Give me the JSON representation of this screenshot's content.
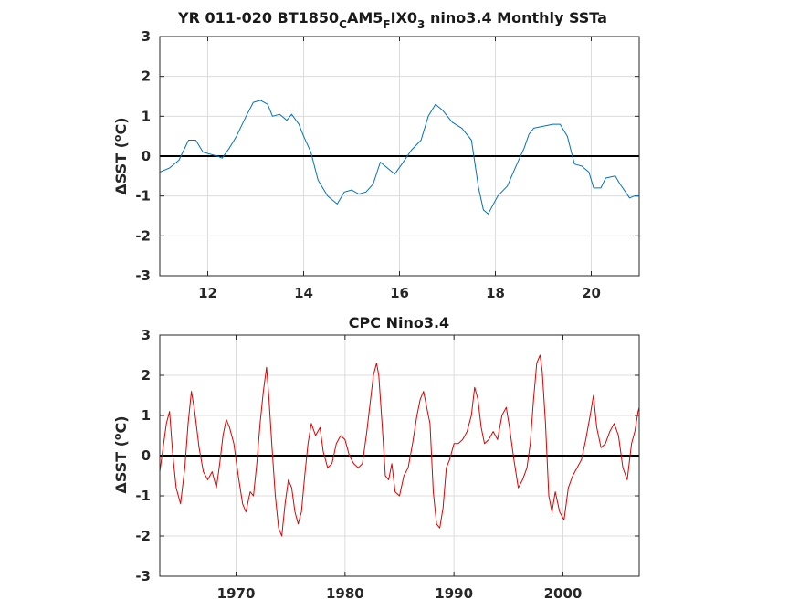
{
  "chart_data": [
    {
      "type": "line",
      "title": "YR 011-020 BT1850",
      "title_sub1": "C",
      "title_mid": "AM5",
      "title_sub2": "F",
      "title_mid2": "IX0",
      "title_sub3": "3",
      "title_end": " nino3.4 Monthly SSTa",
      "ylabel_delta": "Δ",
      "ylabel": "SST (",
      "ylabel_deg": "o",
      "ylabel_end": "C)",
      "xlim": [
        11,
        21
      ],
      "ylim": [
        -3,
        3
      ],
      "xticks": [
        "12",
        "14",
        "16",
        "18",
        "20"
      ],
      "xtick_values": [
        12,
        14,
        16,
        18,
        20
      ],
      "yticks": [
        "3",
        "2",
        "1",
        "0",
        "-1",
        "-2",
        "-3"
      ],
      "ytick_values": [
        3,
        2,
        1,
        0,
        -1,
        -2,
        -3
      ],
      "grid": true,
      "zero_line": true,
      "series": [
        {
          "color": "#0072bd",
          "x": [
            11.0,
            11.2,
            11.4,
            11.6,
            11.75,
            11.9,
            12.05,
            12.2,
            12.3,
            12.45,
            12.6,
            12.8,
            12.95,
            13.1,
            13.25,
            13.35,
            13.5,
            13.65,
            13.75,
            13.9,
            14.0,
            14.15,
            14.3,
            14.5,
            14.7,
            14.85,
            15.0,
            15.15,
            15.3,
            15.45,
            15.6,
            15.75,
            15.9,
            16.05,
            16.25,
            16.45,
            16.6,
            16.75,
            16.9,
            17.1,
            17.3,
            17.5,
            17.65,
            17.75,
            17.85,
            18.05,
            18.25,
            18.45,
            18.6,
            18.7,
            18.8,
            19.0,
            19.2,
            19.35,
            19.5,
            19.65,
            19.8,
            19.95,
            20.05,
            20.2,
            20.3,
            20.5,
            20.6,
            20.8,
            20.9,
            21.0
          ],
          "values": [
            -0.4,
            -0.3,
            -0.1,
            0.4,
            0.4,
            0.1,
            0.05,
            0.0,
            -0.05,
            0.2,
            0.5,
            1.0,
            1.35,
            1.4,
            1.3,
            1.0,
            1.05,
            0.9,
            1.05,
            0.8,
            0.5,
            0.1,
            -0.6,
            -1.0,
            -1.2,
            -0.9,
            -0.85,
            -0.95,
            -0.9,
            -0.7,
            -0.15,
            -0.3,
            -0.45,
            -0.2,
            0.15,
            0.4,
            1.0,
            1.3,
            1.15,
            0.85,
            0.7,
            0.4,
            -0.8,
            -1.35,
            -1.45,
            -1.0,
            -0.75,
            -0.2,
            0.2,
            0.55,
            0.7,
            0.75,
            0.8,
            0.8,
            0.5,
            -0.2,
            -0.25,
            -0.4,
            -0.8,
            -0.8,
            -0.55,
            -0.5,
            -0.7,
            -1.05,
            -1.0,
            -1.0
          ]
        }
      ]
    },
    {
      "type": "line",
      "title": "CPC Nino3.4",
      "ylabel_delta": "Δ",
      "ylabel": "SST (",
      "ylabel_deg": "o",
      "ylabel_end": "C)",
      "xlim": [
        1963,
        2007
      ],
      "ylim": [
        -3,
        3
      ],
      "xticks": [
        "1970",
        "1980",
        "1990",
        "2000"
      ],
      "xtick_values": [
        1970,
        1980,
        1990,
        2000
      ],
      "yticks": [
        "3",
        "2",
        "1",
        "0",
        "-1",
        "-2",
        "-3"
      ],
      "ytick_values": [
        3,
        2,
        1,
        0,
        -1,
        -2,
        -3
      ],
      "grid": true,
      "zero_line": true,
      "series": [
        {
          "color": "#e00000",
          "x": [
            1963.0,
            1963.3,
            1963.6,
            1963.9,
            1964.2,
            1964.5,
            1964.9,
            1965.3,
            1965.6,
            1965.9,
            1966.2,
            1966.6,
            1967.0,
            1967.4,
            1967.8,
            1968.2,
            1968.5,
            1968.8,
            1969.1,
            1969.4,
            1969.8,
            1970.2,
            1970.6,
            1970.9,
            1971.3,
            1971.6,
            1971.9,
            1972.2,
            1972.5,
            1972.8,
            1973.0,
            1973.3,
            1973.6,
            1973.9,
            1974.2,
            1974.5,
            1974.8,
            1975.1,
            1975.4,
            1975.7,
            1976.0,
            1976.3,
            1976.6,
            1976.9,
            1977.3,
            1977.7,
            1978.0,
            1978.4,
            1978.8,
            1979.2,
            1979.6,
            1980.0,
            1980.4,
            1980.8,
            1981.2,
            1981.6,
            1982.0,
            1982.3,
            1982.6,
            1982.9,
            1983.1,
            1983.4,
            1983.7,
            1984.0,
            1984.3,
            1984.6,
            1985.0,
            1985.4,
            1985.8,
            1986.2,
            1986.6,
            1986.9,
            1987.2,
            1987.5,
            1987.8,
            1988.1,
            1988.4,
            1988.7,
            1989.0,
            1989.3,
            1989.6,
            1990.0,
            1990.4,
            1990.8,
            1991.2,
            1991.6,
            1991.9,
            1992.2,
            1992.5,
            1992.8,
            1993.2,
            1993.6,
            1994.0,
            1994.4,
            1994.8,
            1995.1,
            1995.5,
            1995.9,
            1996.3,
            1996.7,
            1997.0,
            1997.3,
            1997.6,
            1997.9,
            1998.1,
            1998.4,
            1998.7,
            1999.0,
            1999.3,
            1999.7,
            2000.1,
            2000.5,
            2000.9,
            2001.3,
            2001.7,
            2002.1,
            2002.5,
            2002.8,
            2003.1,
            2003.5,
            2003.9,
            2004.3,
            2004.7,
            2005.1,
            2005.5,
            2005.9,
            2006.3,
            2006.6,
            2006.9,
            2007.0
          ],
          "values": [
            -0.4,
            0.2,
            0.8,
            1.1,
            0.0,
            -0.8,
            -1.2,
            -0.3,
            0.8,
            1.6,
            1.1,
            0.2,
            -0.4,
            -0.6,
            -0.4,
            -0.8,
            -0.2,
            0.5,
            0.9,
            0.7,
            0.3,
            -0.5,
            -1.2,
            -1.4,
            -0.9,
            -1.0,
            -0.2,
            0.8,
            1.6,
            2.2,
            1.5,
            0.2,
            -1.0,
            -1.8,
            -2.0,
            -1.2,
            -0.6,
            -0.8,
            -1.4,
            -1.7,
            -1.4,
            -0.5,
            0.3,
            0.8,
            0.5,
            0.7,
            0.1,
            -0.3,
            -0.2,
            0.3,
            0.5,
            0.4,
            0.0,
            -0.2,
            -0.3,
            -0.2,
            0.6,
            1.3,
            2.0,
            2.3,
            2.0,
            0.8,
            -0.5,
            -0.6,
            -0.2,
            -0.9,
            -1.0,
            -0.5,
            -0.3,
            0.3,
            1.0,
            1.4,
            1.6,
            1.2,
            0.8,
            -0.9,
            -1.7,
            -1.8,
            -1.3,
            -0.3,
            -0.1,
            0.3,
            0.3,
            0.4,
            0.6,
            1.0,
            1.7,
            1.4,
            0.7,
            0.3,
            0.4,
            0.6,
            0.4,
            1.0,
            1.2,
            0.7,
            -0.1,
            -0.8,
            -0.6,
            -0.3,
            0.3,
            1.4,
            2.3,
            2.5,
            2.1,
            0.8,
            -1.0,
            -1.4,
            -0.9,
            -1.4,
            -1.6,
            -0.8,
            -0.5,
            -0.3,
            -0.1,
            0.4,
            1.0,
            1.5,
            0.7,
            0.2,
            0.3,
            0.6,
            0.8,
            0.5,
            -0.3,
            -0.6,
            0.3,
            0.6,
            1.1,
            1.2
          ]
        }
      ]
    }
  ]
}
